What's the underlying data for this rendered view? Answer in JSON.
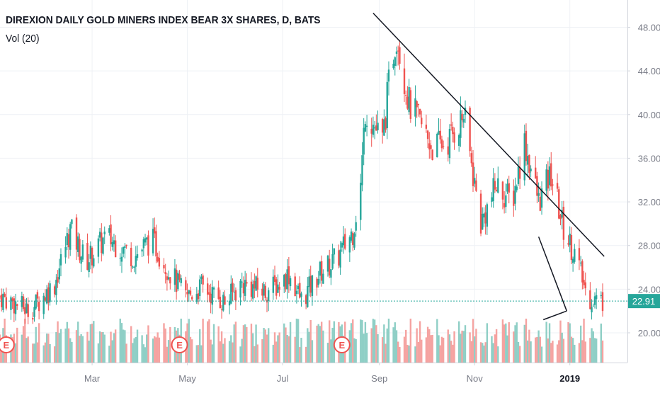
{
  "header": {
    "title": "DIREXION DAILY GOLD MINERS INDEX BEAR 3X SHARES, D, BATS",
    "volume_label": "Vol (20)"
  },
  "colors": {
    "up": "#26a69a",
    "down": "#ef5350",
    "vol_up": "#8fcfc6",
    "vol_down": "#f5a3a1",
    "grid": "#eef1f5",
    "axis": "#787b86",
    "trendline": "#131722",
    "last_price_bg": "#26a69a",
    "earnings": "#ef5350"
  },
  "chart_data": {
    "type": "candlestick",
    "title": "DIREXION DAILY GOLD MINERS INDEX BEAR 3X SHARES, D, BATS",
    "y_axis": {
      "ticks": [
        "20.00",
        "24.00",
        "28.00",
        "32.00",
        "36.00",
        "40.00",
        "44.00",
        "48.00"
      ],
      "tick_values": [
        20,
        24,
        28,
        32,
        36,
        40,
        44,
        48
      ],
      "range": [
        17.5,
        49.5
      ]
    },
    "x_axis": {
      "ticks": [
        {
          "label": "Mar",
          "date": "2018-03-01",
          "bold": false
        },
        {
          "label": "May",
          "date": "2018-05-01",
          "bold": false
        },
        {
          "label": "Jul",
          "date": "2018-07-01",
          "bold": false
        },
        {
          "label": "Sep",
          "date": "2018-09-01",
          "bold": false
        },
        {
          "label": "Nov",
          "date": "2018-11-01",
          "bold": false
        },
        {
          "label": "2019",
          "date": "2019-01-01",
          "bold": true
        }
      ],
      "range": [
        "2018-01-01",
        "2019-01-22"
      ]
    },
    "last_price": {
      "value": 22.91,
      "label": "22.91"
    },
    "volume_series": {
      "name": "Vol (20)"
    },
    "price_path": [
      {
        "date": "2018-01-02",
        "close": 23.3
      },
      {
        "date": "2018-01-20",
        "close": 22.0
      },
      {
        "date": "2018-02-05",
        "close": 24.5
      },
      {
        "date": "2018-02-15",
        "close": 29.5
      },
      {
        "date": "2018-02-25",
        "close": 26.5
      },
      {
        "date": "2018-03-10",
        "close": 28.8
      },
      {
        "date": "2018-03-28",
        "close": 27.0
      },
      {
        "date": "2018-04-08",
        "close": 28.6
      },
      {
        "date": "2018-04-20",
        "close": 25.5
      },
      {
        "date": "2018-04-30",
        "close": 23.3
      },
      {
        "date": "2018-05-10",
        "close": 24.2
      },
      {
        "date": "2018-05-25",
        "close": 22.8
      },
      {
        "date": "2018-06-05",
        "close": 24.5
      },
      {
        "date": "2018-06-20",
        "close": 23.8
      },
      {
        "date": "2018-06-28",
        "close": 24.4
      },
      {
        "date": "2018-07-05",
        "close": 25.4
      },
      {
        "date": "2018-07-13",
        "close": 23.0
      },
      {
        "date": "2018-07-25",
        "close": 25.5
      },
      {
        "date": "2018-08-05",
        "close": 26.8
      },
      {
        "date": "2018-08-15",
        "close": 29.3
      },
      {
        "date": "2018-08-20",
        "close": 33.5
      },
      {
        "date": "2018-08-23",
        "close": 40.5
      },
      {
        "date": "2018-09-03",
        "close": 37.5
      },
      {
        "date": "2018-09-08",
        "close": 44.0
      },
      {
        "date": "2018-09-12",
        "close": 47.5
      },
      {
        "date": "2018-09-20",
        "close": 41.0
      },
      {
        "date": "2018-10-05",
        "close": 37.0
      },
      {
        "date": "2018-10-15",
        "close": 37.5
      },
      {
        "date": "2018-10-25",
        "close": 40.0
      },
      {
        "date": "2018-11-05",
        "close": 30.0
      },
      {
        "date": "2018-11-15",
        "close": 33.5
      },
      {
        "date": "2018-11-25",
        "close": 32.0
      },
      {
        "date": "2018-12-03",
        "close": 37.5
      },
      {
        "date": "2018-12-12",
        "close": 32.0
      },
      {
        "date": "2018-12-20",
        "close": 34.5
      },
      {
        "date": "2018-12-28",
        "close": 29.5
      },
      {
        "date": "2019-01-05",
        "close": 27.0
      },
      {
        "date": "2019-01-12",
        "close": 23.3
      },
      {
        "date": "2019-01-22",
        "close": 22.91
      }
    ],
    "earnings_markers": [
      {
        "date": "2018-01-05",
        "label": "E"
      },
      {
        "date": "2018-04-26",
        "label": "E"
      },
      {
        "date": "2018-08-08",
        "label": "E"
      }
    ],
    "trendlines": [
      {
        "start": {
          "date": "2018-08-28",
          "value": 49.3
        },
        "end": {
          "date": "2019-01-23",
          "value": 27.0
        }
      },
      {
        "start": {
          "date": "2018-12-12",
          "value": 28.8
        },
        "end": {
          "date": "2018-12-30",
          "value": 22.0
        }
      },
      {
        "start": {
          "date": "2018-12-30",
          "value": 22.0
        },
        "end": {
          "date": "2018-12-15",
          "value": 21.2
        }
      }
    ]
  }
}
